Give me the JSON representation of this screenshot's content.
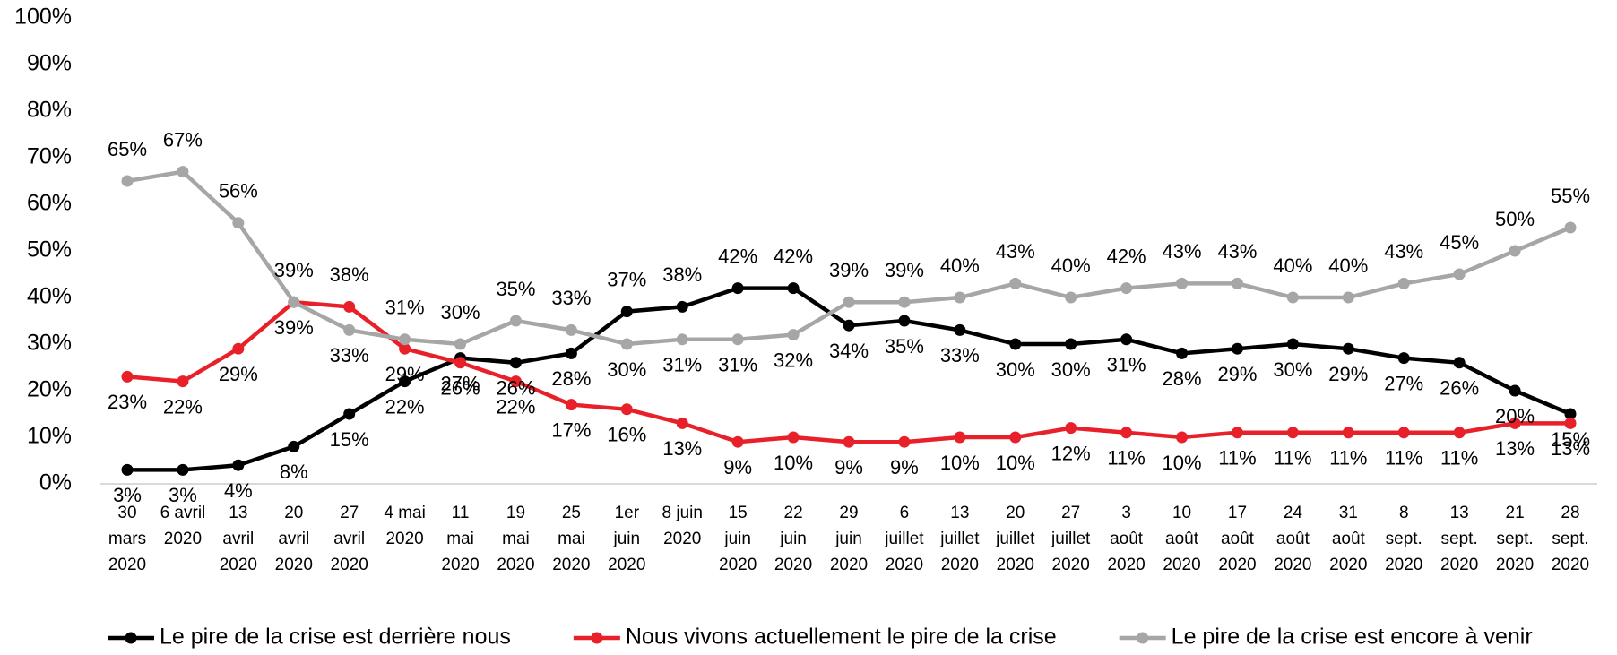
{
  "chart_data": {
    "type": "line",
    "categories": [
      "30\nmars\n2020",
      "6 avril\n2020",
      "13\navril\n2020",
      "20\navril\n2020",
      "27\navril\n2020",
      "4 mai\n2020",
      "11\nmai\n2020",
      "19\nmai\n2020",
      "25\nmai\n2020",
      "1er\njuin\n2020",
      "8 juin\n2020",
      "15\njuin\n2020",
      "22\njuin\n2020",
      "29\njuin\n2020",
      "6\njuillet\n2020",
      "13\njuillet\n2020",
      "20\njuillet\n2020",
      "27\njuillet\n2020",
      "3\naoût\n2020",
      "10\naoût\n2020",
      "17\naoût\n2020",
      "24\naoût\n2020",
      "31\naoût\n2020",
      "8\nsept.\n2020",
      "13\nsept.\n2020",
      "21\nsept.\n2020",
      "28\nsept.\n2020"
    ],
    "series": [
      {
        "name": "Le pire de la crise est derrière nous",
        "color": "#000000",
        "values": [
          3,
          3,
          4,
          8,
          15,
          22,
          27,
          26,
          28,
          37,
          38,
          42,
          42,
          34,
          35,
          33,
          30,
          30,
          31,
          28,
          29,
          30,
          29,
          27,
          26,
          20,
          15
        ],
        "value_labels": [
          "3%",
          "3%",
          "4%",
          "8%",
          "15%",
          "22%",
          "27%",
          "26%",
          "28%",
          "37%",
          "38%",
          "42%",
          "42%",
          "34%",
          "35%",
          "33%",
          "30%",
          "30%",
          "31%",
          "28%",
          "29%",
          "30%",
          "29%",
          "27%",
          "26%",
          "20%",
          "15%"
        ]
      },
      {
        "name": "Nous vivons actuellement le pire de la crise",
        "color": "#e8202a",
        "values": [
          23,
          22,
          29,
          39,
          38,
          29,
          26,
          22,
          17,
          16,
          13,
          9,
          10,
          9,
          9,
          10,
          10,
          12,
          11,
          10,
          11,
          11,
          11,
          11,
          11,
          13,
          13
        ],
        "value_labels": [
          "23%",
          "22%",
          "29%",
          "39%",
          "38%",
          "29%",
          "26%",
          "22%",
          "17%",
          "16%",
          "13%",
          "9%",
          "10%",
          "9%",
          "9%",
          "10%",
          "10%",
          "12%",
          "11%",
          "10%",
          "11%",
          "11%",
          "11%",
          "11%",
          "11%",
          "13%",
          "13%"
        ]
      },
      {
        "name": "Le pire de la crise est encore à venir",
        "color": "#a6a6a6",
        "values": [
          65,
          67,
          56,
          39,
          33,
          31,
          30,
          35,
          33,
          30,
          31,
          31,
          32,
          39,
          39,
          40,
          43,
          40,
          42,
          43,
          43,
          40,
          40,
          43,
          45,
          50,
          55
        ],
        "value_labels": [
          "65%",
          "67%",
          "56%",
          "39%",
          "33%",
          "31%",
          "30%",
          "35%",
          "33%",
          "30%",
          "31%",
          "31%",
          "32%",
          "39%",
          "39%",
          "40%",
          "43%",
          "40%",
          "42%",
          "43%",
          "43%",
          "40%",
          "40%",
          "43%",
          "45%",
          "50%",
          "55%"
        ]
      }
    ],
    "ylim": [
      0,
      100
    ],
    "yticks": [
      {
        "value": 0,
        "label": "0%"
      },
      {
        "value": 10,
        "label": "10%"
      },
      {
        "value": 20,
        "label": "20%"
      },
      {
        "value": 30,
        "label": "30%"
      },
      {
        "value": 40,
        "label": "40%"
      },
      {
        "value": 50,
        "label": "50%"
      },
      {
        "value": 60,
        "label": "60%"
      },
      {
        "value": 70,
        "label": "70%"
      },
      {
        "value": 80,
        "label": "80%"
      },
      {
        "value": 90,
        "label": "90%"
      },
      {
        "value": 100,
        "label": "100%"
      }
    ],
    "legend": "bottom"
  }
}
